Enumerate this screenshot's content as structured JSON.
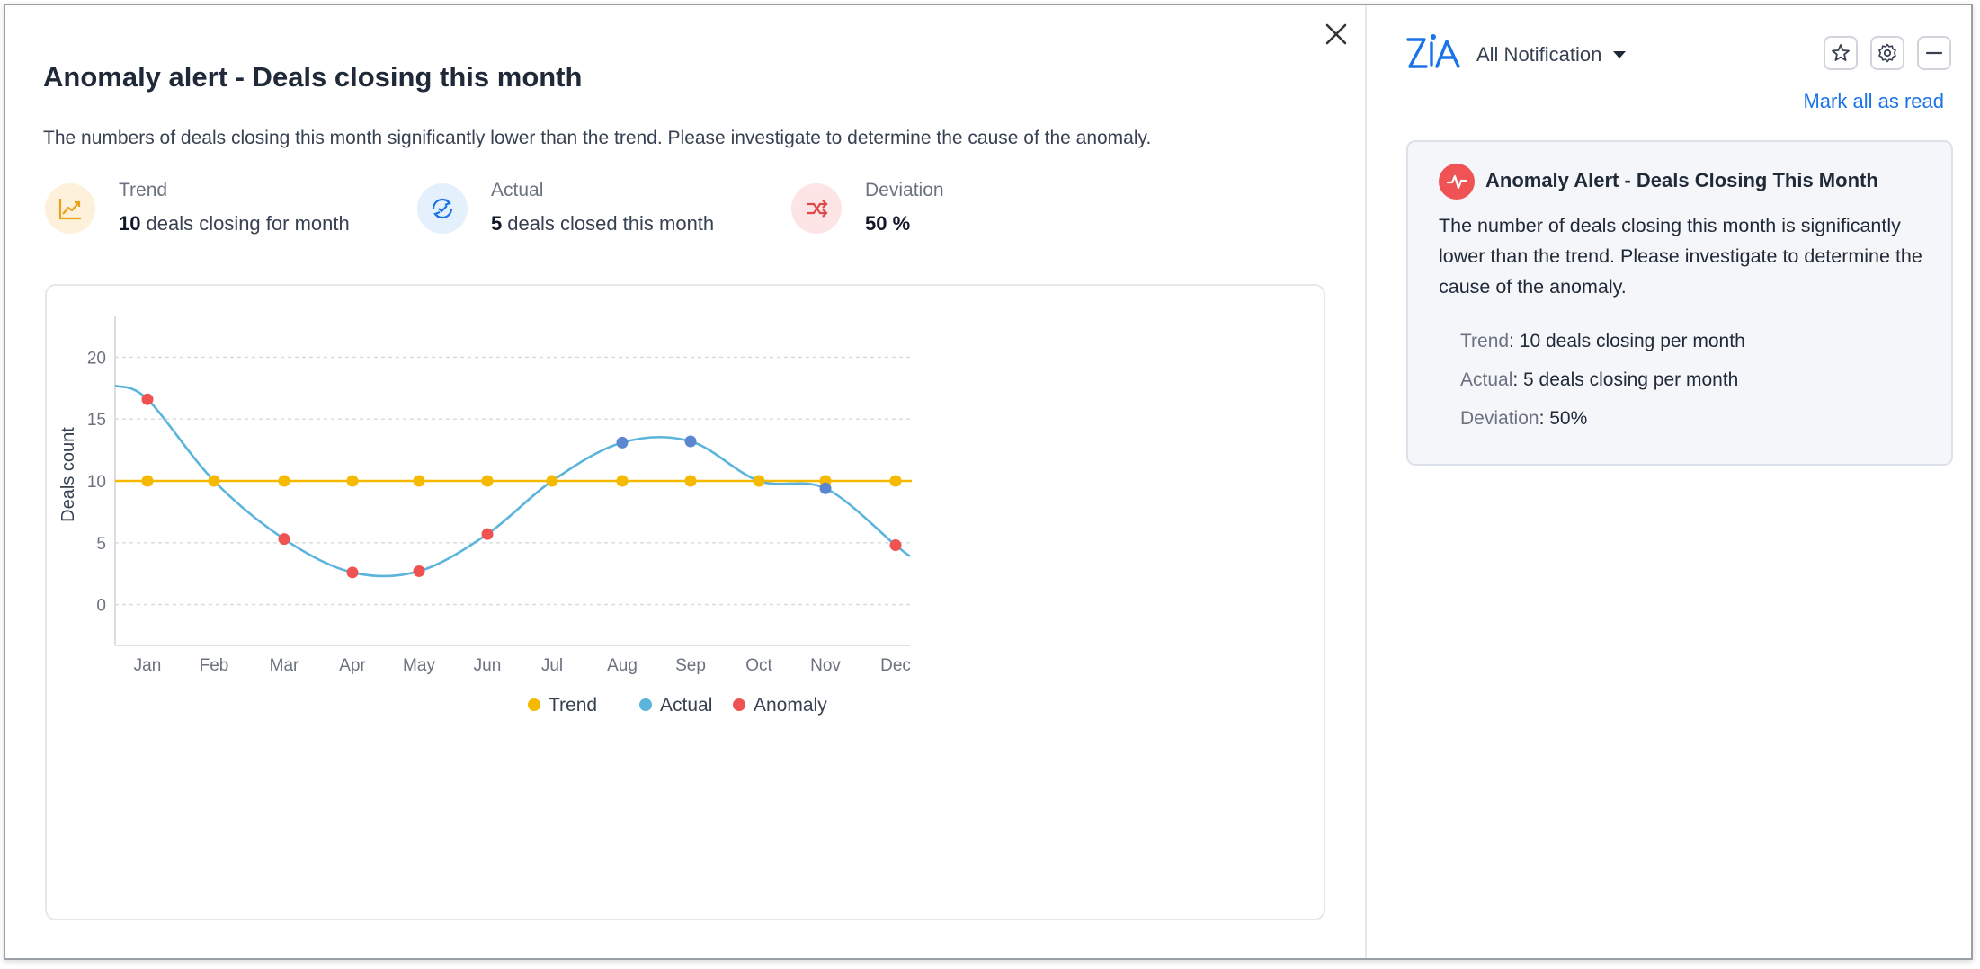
{
  "alert": {
    "title": "Anomaly alert - Deals closing this month",
    "description": "The numbers of deals closing this month significantly lower than the trend. Please investigate to determine the cause of the anomaly.",
    "stats": [
      {
        "label": "Trend",
        "number": "10",
        "text": "deals closing for month"
      },
      {
        "label": "Actual",
        "number": "5",
        "text": "deals closed this month"
      },
      {
        "label": "Deviation",
        "number": "50 %",
        "text": ""
      }
    ]
  },
  "colors": {
    "trend": "#f5b900",
    "actual": "#5ab4dc",
    "anomaly": "#f05252",
    "normal_point": "#5b86d0",
    "accent": "#1a73e8"
  },
  "chart_data": {
    "type": "line",
    "ylabel": "Deals count",
    "xlabel": "",
    "categories": [
      "Jan",
      "Feb",
      "Mar",
      "Apr",
      "May",
      "Jun",
      "Jul",
      "Aug",
      "Sep",
      "Oct",
      "Nov",
      "Dec"
    ],
    "y_ticks": [
      0,
      5,
      10,
      15,
      20
    ],
    "ylim": [
      -3.3,
      23.3
    ],
    "grid": true,
    "legend_position": "bottom-center",
    "series": [
      {
        "name": "Trend",
        "values": [
          10,
          10,
          10,
          10,
          10,
          10,
          10,
          10,
          10,
          10,
          10,
          10
        ]
      },
      {
        "name": "Actual",
        "values": [
          16.6,
          10.0,
          5.3,
          2.6,
          2.7,
          5.7,
          10.0,
          13.1,
          13.2,
          10.0,
          9.4,
          4.8
        ]
      },
      {
        "name": "Anomaly",
        "values": [
          16.6,
          null,
          5.3,
          2.6,
          2.7,
          5.7,
          null,
          null,
          null,
          null,
          null,
          4.8
        ]
      }
    ],
    "actual_curve_start": 17.7,
    "actual_curve_end": 3.9,
    "legend": [
      "Trend",
      "Actual",
      "Anomaly"
    ]
  },
  "panel": {
    "filter_label": "All Notification",
    "mark_all_read": "Mark all as read",
    "notification": {
      "title": "Anomaly Alert - Deals Closing This Month",
      "body": "The number of deals closing this month is significantly lower than the trend. Please investigate to determine the cause of the anomaly.",
      "rows": [
        {
          "key": "Trend",
          "value": ": 10 deals closing per month"
        },
        {
          "key": "Actual",
          "value": ": 5 deals closing per month"
        },
        {
          "key": "Deviation",
          "value": ": 50%"
        }
      ]
    }
  }
}
